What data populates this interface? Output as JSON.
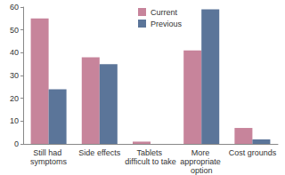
{
  "chart_data": {
    "type": "bar",
    "categories": [
      "Still had symptoms",
      "Side effects",
      "Tablets difficult to take",
      "More appropriate option",
      "Cost grounds"
    ],
    "series": [
      {
        "name": "Current",
        "color": "#c7849b",
        "values": [
          55,
          38,
          1,
          41,
          7
        ]
      },
      {
        "name": "Previous",
        "color": "#5b7599",
        "values": [
          24,
          35,
          0,
          59,
          2
        ]
      }
    ],
    "ylim": [
      0,
      60
    ],
    "yticks": [
      0,
      10,
      20,
      30,
      40,
      50,
      60
    ],
    "grid": false,
    "legend": "top"
  }
}
